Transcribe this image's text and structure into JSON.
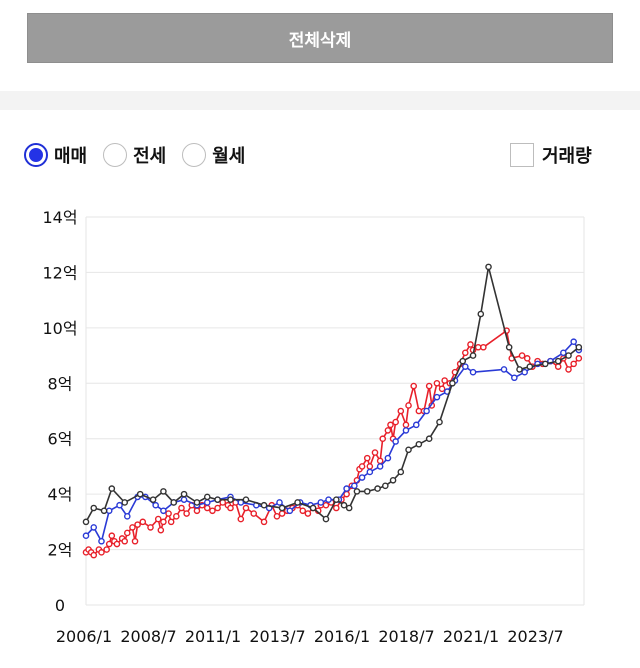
{
  "header": {
    "delete_all_label": "전체삭제"
  },
  "filters": {
    "options": [
      {
        "label": "매매",
        "selected": true
      },
      {
        "label": "전세",
        "selected": false
      },
      {
        "label": "월세",
        "selected": false
      }
    ],
    "volume_label": "거래량",
    "volume_checked": false
  },
  "chart_data": {
    "type": "line",
    "y_unit": "억",
    "ylim": [
      0,
      14
    ],
    "y_ticks": [
      "0",
      "2억",
      "4억",
      "6억",
      "8억",
      "10억",
      "12억",
      "14억"
    ],
    "x_ticks": [
      "2006/1",
      "2008/7",
      "2011/1",
      "2013/7",
      "2016/1",
      "2018/7",
      "2021/1",
      "2023/7"
    ],
    "xlim": [
      2006.0,
      2025.3
    ],
    "grid": true,
    "series": [
      {
        "color": "#e8202a",
        "points": [
          [
            2006.0,
            1.9
          ],
          [
            2006.1,
            2.0
          ],
          [
            2006.2,
            1.9
          ],
          [
            2006.3,
            1.8
          ],
          [
            2006.5,
            2.0
          ],
          [
            2006.6,
            1.9
          ],
          [
            2006.8,
            2.0
          ],
          [
            2006.9,
            2.2
          ],
          [
            2007.0,
            2.5
          ],
          [
            2007.1,
            2.3
          ],
          [
            2007.2,
            2.2
          ],
          [
            2007.4,
            2.4
          ],
          [
            2007.5,
            2.3
          ],
          [
            2007.6,
            2.6
          ],
          [
            2007.8,
            2.8
          ],
          [
            2007.9,
            2.3
          ],
          [
            2008.0,
            2.9
          ],
          [
            2008.2,
            3.0
          ],
          [
            2008.5,
            2.8
          ],
          [
            2008.8,
            3.1
          ],
          [
            2008.9,
            2.7
          ],
          [
            2009.0,
            3.0
          ],
          [
            2009.2,
            3.3
          ],
          [
            2009.3,
            3.0
          ],
          [
            2009.5,
            3.2
          ],
          [
            2009.7,
            3.5
          ],
          [
            2009.9,
            3.3
          ],
          [
            2010.1,
            3.6
          ],
          [
            2010.3,
            3.4
          ],
          [
            2010.5,
            3.6
          ],
          [
            2010.7,
            3.5
          ],
          [
            2010.9,
            3.4
          ],
          [
            2011.1,
            3.5
          ],
          [
            2011.3,
            3.7
          ],
          [
            2011.5,
            3.6
          ],
          [
            2011.6,
            3.5
          ],
          [
            2011.8,
            3.7
          ],
          [
            2012.0,
            3.1
          ],
          [
            2012.2,
            3.5
          ],
          [
            2012.5,
            3.3
          ],
          [
            2012.9,
            3.0
          ],
          [
            2013.2,
            3.6
          ],
          [
            2013.4,
            3.2
          ],
          [
            2013.6,
            3.3
          ],
          [
            2013.8,
            3.4
          ],
          [
            2014.0,
            3.5
          ],
          [
            2014.2,
            3.6
          ],
          [
            2014.4,
            3.4
          ],
          [
            2014.6,
            3.3
          ],
          [
            2014.8,
            3.5
          ],
          [
            2015.0,
            3.4
          ],
          [
            2015.1,
            3.6
          ],
          [
            2015.3,
            3.6
          ],
          [
            2015.5,
            3.7
          ],
          [
            2015.7,
            3.5
          ],
          [
            2015.9,
            3.8
          ],
          [
            2016.1,
            4.0
          ],
          [
            2016.3,
            4.3
          ],
          [
            2016.5,
            4.5
          ],
          [
            2016.6,
            4.9
          ],
          [
            2016.7,
            5.0
          ],
          [
            2016.9,
            5.3
          ],
          [
            2017.0,
            5.0
          ],
          [
            2017.2,
            5.5
          ],
          [
            2017.4,
            5.2
          ],
          [
            2017.5,
            6.0
          ],
          [
            2017.7,
            6.3
          ],
          [
            2017.8,
            6.5
          ],
          [
            2017.9,
            6.0
          ],
          [
            2018.0,
            6.6
          ],
          [
            2018.2,
            7.0
          ],
          [
            2018.4,
            6.5
          ],
          [
            2018.5,
            7.2
          ],
          [
            2018.7,
            7.9
          ],
          [
            2018.9,
            7.0
          ],
          [
            2019.1,
            7.0
          ],
          [
            2019.3,
            7.9
          ],
          [
            2019.4,
            7.2
          ],
          [
            2019.6,
            8.0
          ],
          [
            2019.8,
            7.8
          ],
          [
            2019.9,
            8.1
          ],
          [
            2020.1,
            8.0
          ],
          [
            2020.3,
            8.4
          ],
          [
            2020.5,
            8.7
          ],
          [
            2020.7,
            9.1
          ],
          [
            2020.9,
            9.4
          ],
          [
            2021.0,
            9.2
          ],
          [
            2021.2,
            9.3
          ],
          [
            2021.4,
            9.3
          ],
          [
            2022.3,
            9.9
          ],
          [
            2022.5,
            8.9
          ],
          [
            2022.9,
            9.0
          ],
          [
            2023.1,
            8.9
          ],
          [
            2023.3,
            8.6
          ],
          [
            2023.5,
            8.8
          ],
          [
            2023.7,
            8.7
          ],
          [
            2024.0,
            8.8
          ],
          [
            2024.3,
            8.6
          ],
          [
            2024.5,
            8.9
          ],
          [
            2024.7,
            8.5
          ],
          [
            2024.9,
            8.7
          ],
          [
            2025.1,
            8.9
          ]
        ]
      },
      {
        "color": "#2a3ad6",
        "points": [
          [
            2006.0,
            2.5
          ],
          [
            2006.3,
            2.8
          ],
          [
            2006.6,
            2.3
          ],
          [
            2006.9,
            3.4
          ],
          [
            2007.3,
            3.6
          ],
          [
            2007.6,
            3.2
          ],
          [
            2008.0,
            3.9
          ],
          [
            2008.3,
            3.9
          ],
          [
            2008.7,
            3.6
          ],
          [
            2009.0,
            3.4
          ],
          [
            2009.4,
            3.7
          ],
          [
            2009.8,
            3.8
          ],
          [
            2010.3,
            3.6
          ],
          [
            2010.7,
            3.7
          ],
          [
            2011.1,
            3.8
          ],
          [
            2011.6,
            3.9
          ],
          [
            2012.0,
            3.7
          ],
          [
            2012.6,
            3.6
          ],
          [
            2013.1,
            3.5
          ],
          [
            2013.5,
            3.7
          ],
          [
            2013.9,
            3.4
          ],
          [
            2014.3,
            3.7
          ],
          [
            2014.7,
            3.6
          ],
          [
            2015.1,
            3.7
          ],
          [
            2015.4,
            3.8
          ],
          [
            2015.8,
            3.8
          ],
          [
            2016.1,
            4.2
          ],
          [
            2016.4,
            4.3
          ],
          [
            2016.7,
            4.6
          ],
          [
            2017.0,
            4.8
          ],
          [
            2017.4,
            5.0
          ],
          [
            2017.7,
            5.3
          ],
          [
            2018.0,
            5.9
          ],
          [
            2018.4,
            6.3
          ],
          [
            2018.8,
            6.5
          ],
          [
            2019.2,
            7.0
          ],
          [
            2019.6,
            7.5
          ],
          [
            2020.0,
            7.7
          ],
          [
            2020.3,
            8.1
          ],
          [
            2020.7,
            8.6
          ],
          [
            2021.0,
            8.4
          ],
          [
            2022.2,
            8.5
          ],
          [
            2022.6,
            8.2
          ],
          [
            2023.0,
            8.4
          ],
          [
            2023.5,
            8.7
          ],
          [
            2024.0,
            8.8
          ],
          [
            2024.5,
            9.1
          ],
          [
            2024.9,
            9.5
          ],
          [
            2025.1,
            9.2
          ]
        ]
      },
      {
        "color": "#333333",
        "points": [
          [
            2006.0,
            3.0
          ],
          [
            2006.3,
            3.5
          ],
          [
            2006.7,
            3.4
          ],
          [
            2007.0,
            4.2
          ],
          [
            2007.5,
            3.7
          ],
          [
            2008.1,
            4.0
          ],
          [
            2008.6,
            3.8
          ],
          [
            2009.0,
            4.1
          ],
          [
            2009.4,
            3.7
          ],
          [
            2009.8,
            4.0
          ],
          [
            2010.3,
            3.7
          ],
          [
            2010.7,
            3.9
          ],
          [
            2011.1,
            3.8
          ],
          [
            2011.6,
            3.8
          ],
          [
            2012.2,
            3.8
          ],
          [
            2012.9,
            3.6
          ],
          [
            2013.6,
            3.5
          ],
          [
            2014.2,
            3.7
          ],
          [
            2014.8,
            3.5
          ],
          [
            2015.3,
            3.1
          ],
          [
            2015.7,
            3.8
          ],
          [
            2016.0,
            3.6
          ],
          [
            2016.2,
            3.5
          ],
          [
            2016.5,
            4.1
          ],
          [
            2016.9,
            4.1
          ],
          [
            2017.3,
            4.2
          ],
          [
            2017.6,
            4.3
          ],
          [
            2017.9,
            4.5
          ],
          [
            2018.2,
            4.8
          ],
          [
            2018.5,
            5.6
          ],
          [
            2018.9,
            5.8
          ],
          [
            2019.3,
            6.0
          ],
          [
            2019.7,
            6.6
          ],
          [
            2020.2,
            8.0
          ],
          [
            2020.6,
            8.8
          ],
          [
            2021.0,
            9.0
          ],
          [
            2021.3,
            10.5
          ],
          [
            2021.6,
            12.2
          ],
          [
            2022.4,
            9.3
          ],
          [
            2022.8,
            8.5
          ],
          [
            2023.2,
            8.6
          ],
          [
            2023.8,
            8.7
          ],
          [
            2024.3,
            8.8
          ],
          [
            2024.7,
            9.0
          ],
          [
            2025.1,
            9.3
          ]
        ]
      }
    ]
  }
}
